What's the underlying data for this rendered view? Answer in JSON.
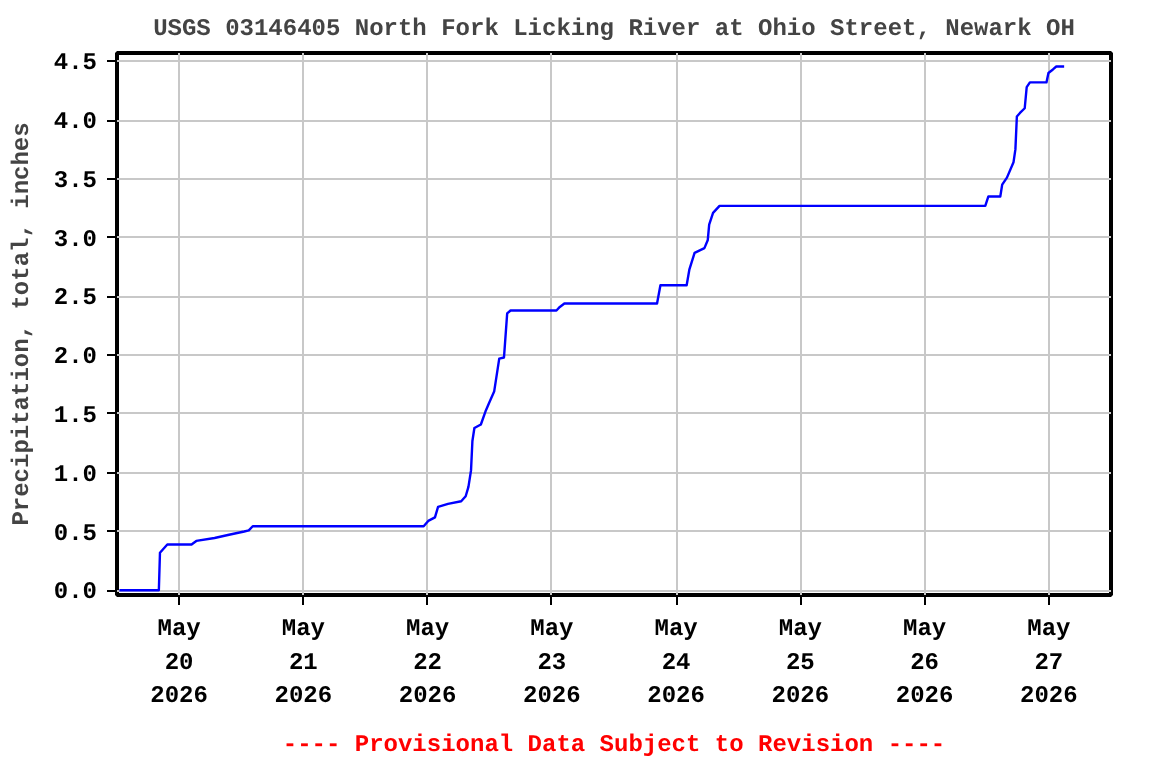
{
  "chart_data": {
    "type": "line",
    "title": "USGS 03146405 North Fork Licking River at Ohio Street, Newark OH",
    "ylabel": "Precipitation, total, inches",
    "annotations": [
      "---- Provisional Data Subject to Revision ----"
    ],
    "x": [
      "2026-05-19T12:28",
      "2026-05-19T20:05",
      "2026-05-19T20:18",
      "2026-05-19T21:43",
      "2026-05-20T02:24",
      "2026-05-20T03:19",
      "2026-05-20T06:51",
      "2026-05-20T09:25",
      "2026-05-20T12:34",
      "2026-05-20T13:27",
      "2026-05-20T14:13",
      "2026-05-21T23:14",
      "2026-05-22T00:07",
      "2026-05-22T01:25",
      "2026-05-22T02:01",
      "2026-05-22T03:56",
      "2026-05-22T06:29",
      "2026-05-22T07:21",
      "2026-05-22T07:53",
      "2026-05-22T08:23",
      "2026-05-22T08:39",
      "2026-05-22T09:02",
      "2026-05-22T10:17",
      "2026-05-22T11:10",
      "2026-05-22T11:56",
      "2026-05-22T12:51",
      "2026-05-22T13:50",
      "2026-05-22T14:45",
      "2026-05-22T15:22",
      "2026-05-22T16:01",
      "2026-05-23T00:53",
      "2026-05-23T01:32",
      "2026-05-23T02:25",
      "2026-05-23T20:19",
      "2026-05-23T20:58",
      "2026-05-24T02:02",
      "2026-05-24T02:34",
      "2026-05-24T03:34",
      "2026-05-24T05:28",
      "2026-05-24T06:07",
      "2026-05-24T06:23",
      "2026-05-24T07:08",
      "2026-05-24T08:23",
      "2026-05-26T11:43",
      "2026-05-26T12:19",
      "2026-05-26T14:37",
      "2026-05-26T14:59",
      "2026-05-26T15:54",
      "2026-05-26T17:10",
      "2026-05-26T17:32",
      "2026-05-26T17:49",
      "2026-05-26T18:25",
      "2026-05-26T19:20",
      "2026-05-26T19:43",
      "2026-05-26T20:20",
      "2026-05-26T23:32",
      "2026-05-26T23:55",
      "2026-05-27T00:47",
      "2026-05-27T01:26",
      "2026-05-27T02:57"
    ],
    "series": [
      {
        "color": "#0000ff",
        "values": [
          0,
          0,
          0.32,
          0.39,
          0.39,
          0.42,
          0.445,
          0.47,
          0.5,
          0.51,
          0.545,
          0.545,
          0.59,
          0.62,
          0.71,
          0.735,
          0.757,
          0.8,
          0.88,
          1.02,
          1.27,
          1.38,
          1.41,
          1.52,
          1.6,
          1.69,
          1.97,
          1.98,
          2.355,
          2.38,
          2.38,
          2.41,
          2.44,
          2.44,
          2.595,
          2.595,
          2.73,
          2.87,
          2.91,
          2.98,
          3.11,
          3.21,
          3.27,
          3.27,
          3.35,
          3.35,
          3.45,
          3.51,
          3.64,
          3.75,
          4.03,
          4.06,
          4.1,
          4.28,
          4.32,
          4.32,
          4.4,
          4.43,
          4.455,
          4.455
        ]
      }
    ],
    "xlim": [
      "2026-05-19T12:00",
      "2026-05-27T12:00"
    ],
    "xticks": [
      {
        "value": "2026-05-20",
        "label": "May\n20\n2026"
      },
      {
        "value": "2026-05-21",
        "label": "May\n21\n2026"
      },
      {
        "value": "2026-05-22",
        "label": "May\n22\n2026"
      },
      {
        "value": "2026-05-23",
        "label": "May\n23\n2026"
      },
      {
        "value": "2026-05-24",
        "label": "May\n24\n2026"
      },
      {
        "value": "2026-05-25",
        "label": "May\n25\n2026"
      },
      {
        "value": "2026-05-26",
        "label": "May\n26\n2026"
      },
      {
        "value": "2026-05-27",
        "label": "May\n27\n2026"
      }
    ],
    "ylim": [
      -0.04,
      4.57
    ],
    "yticks": [
      {
        "value": 0,
        "label": "0.0"
      },
      0.5,
      {
        "value": 1,
        "label": "1.0"
      },
      1.5,
      {
        "value": 2,
        "label": "2.0"
      },
      2.5,
      {
        "value": 3,
        "label": "3.0"
      },
      3.5,
      {
        "value": 4,
        "label": "4.0"
      },
      4.5
    ],
    "grid": true,
    "line_style": "solid",
    "marker": "none"
  }
}
